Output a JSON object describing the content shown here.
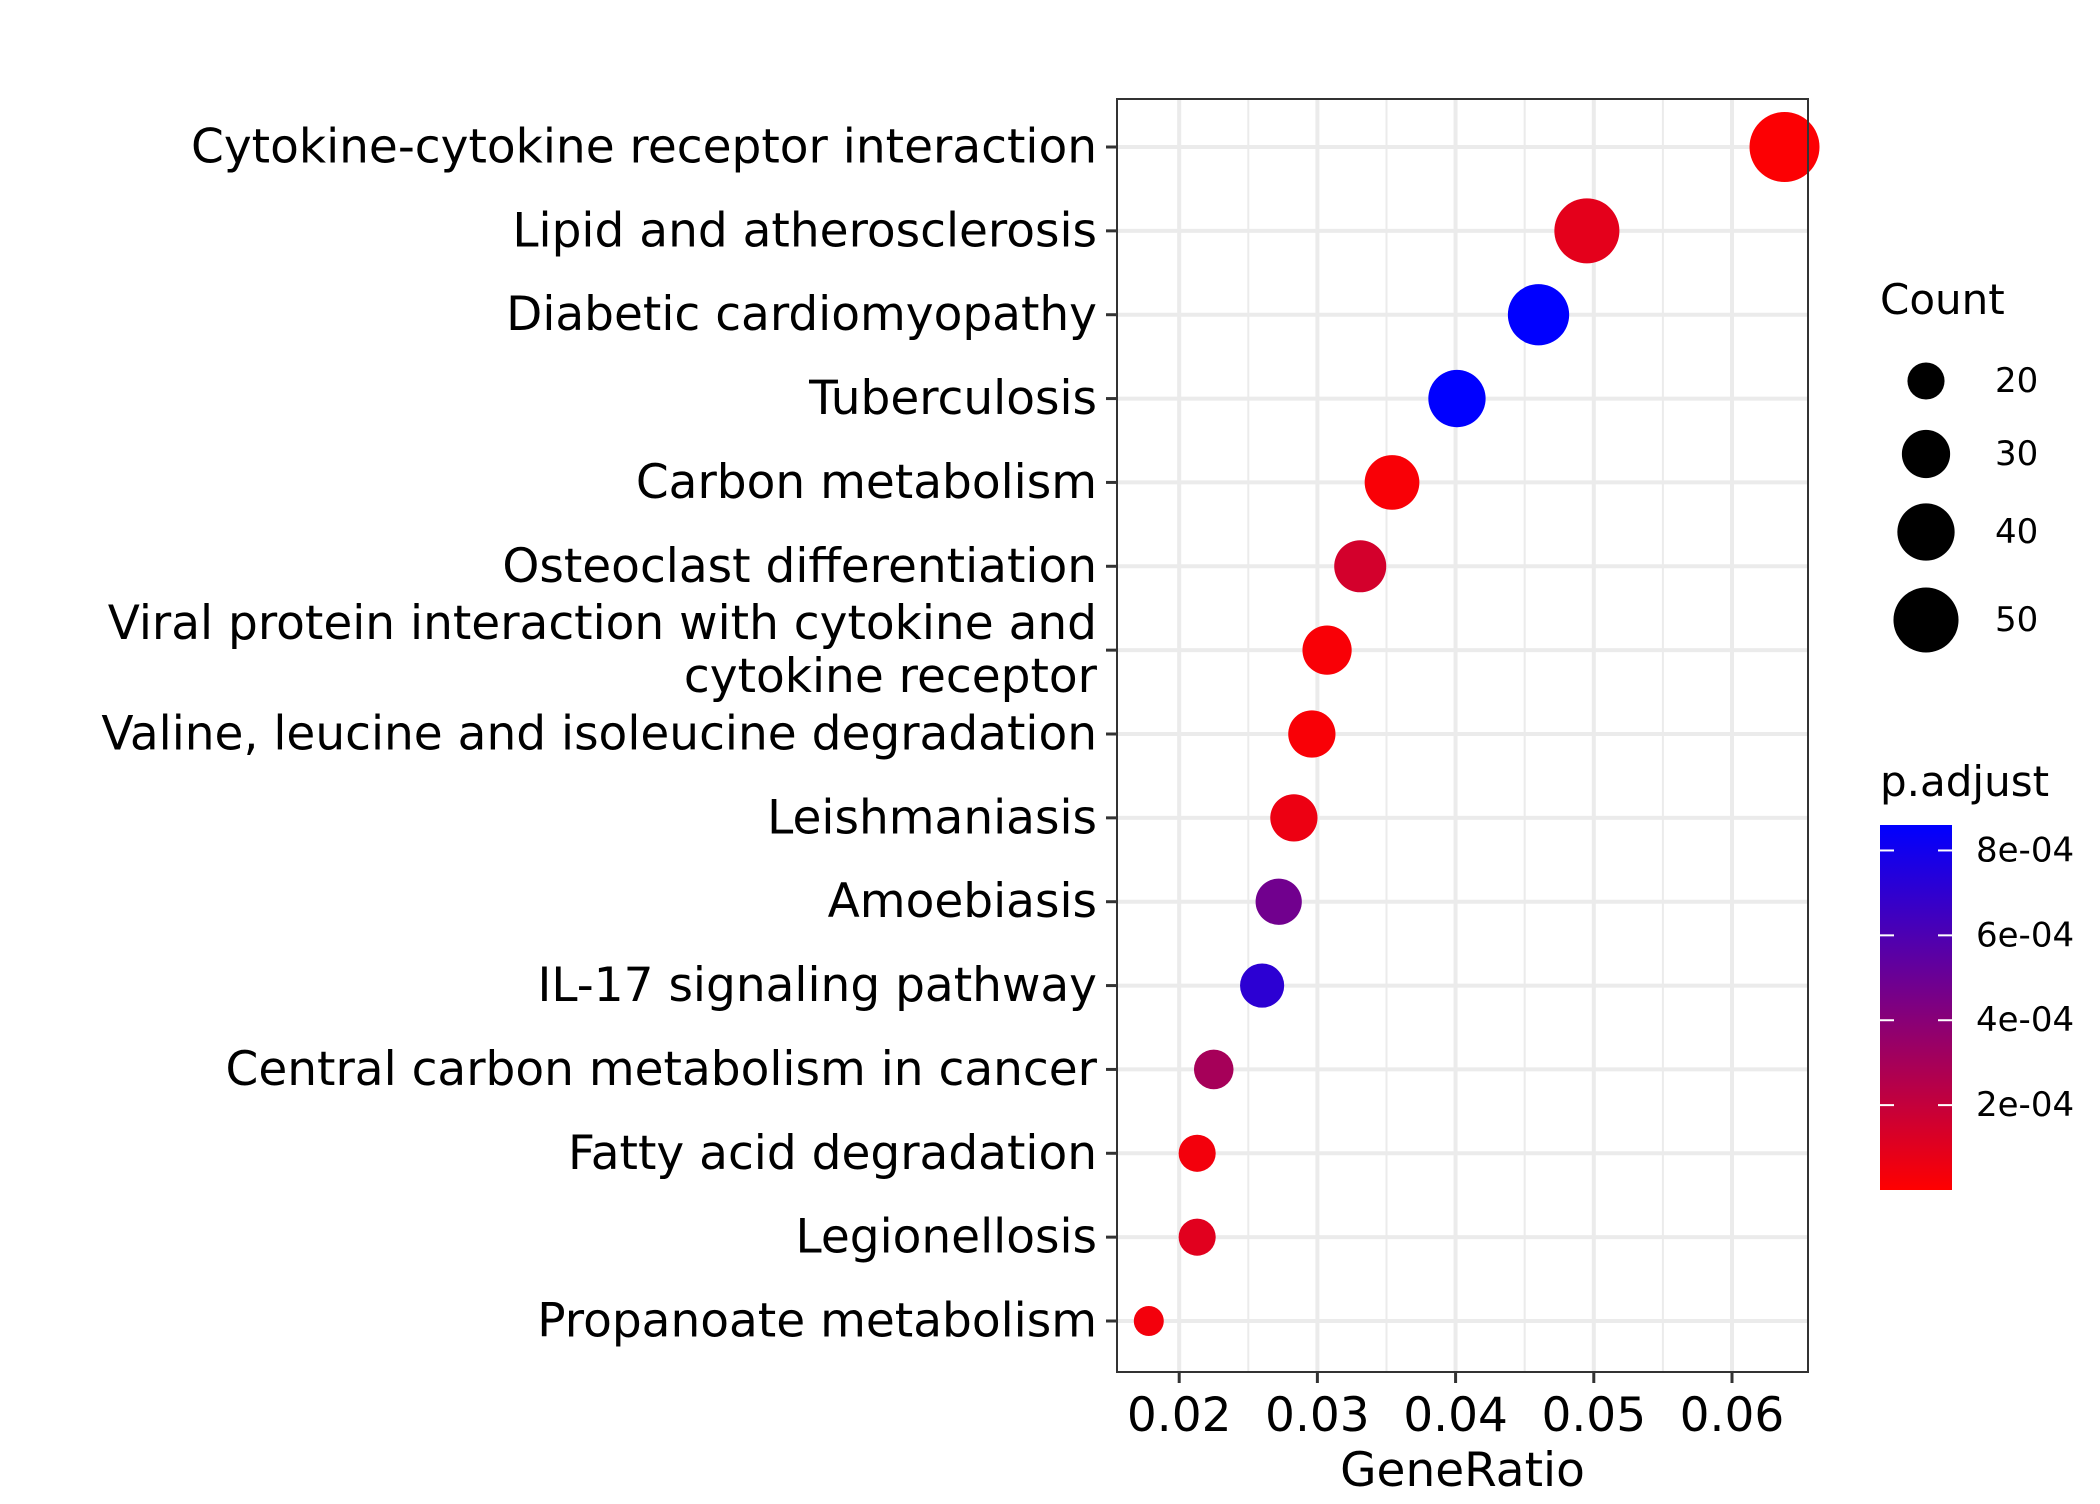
{
  "chart_data": {
    "type": "scatter",
    "xlabel": "GeneRatio",
    "ylabel": "",
    "xlim": [
      0.0155,
      0.0655
    ],
    "x_ticks": [
      {
        "value": 0.02,
        "label": "0.02"
      },
      {
        "value": 0.03,
        "label": "0.03"
      },
      {
        "value": 0.04,
        "label": "0.04"
      },
      {
        "value": 0.05,
        "label": "0.05"
      },
      {
        "value": 0.06,
        "label": "0.06"
      }
    ],
    "grid": true,
    "points": [
      {
        "term_lines": [
          "Cytokine-cytokine receptor interaction"
        ],
        "gene_ratio": 0.0638,
        "count": 57,
        "p_adjust": 1e-05
      },
      {
        "term_lines": [
          "Lipid and atherosclerosis"
        ],
        "gene_ratio": 0.0495,
        "count": 50,
        "p_adjust": 9e-05
      },
      {
        "term_lines": [
          "Diabetic cardiomyopathy"
        ],
        "gene_ratio": 0.046,
        "count": 45,
        "p_adjust": 0.00086
      },
      {
        "term_lines": [
          "Tuberculosis"
        ],
        "gene_ratio": 0.0401,
        "count": 40,
        "p_adjust": 0.00086
      },
      {
        "term_lines": [
          "Carbon metabolism"
        ],
        "gene_ratio": 0.0354,
        "count": 37,
        "p_adjust": 2e-05
      },
      {
        "term_lines": [
          "Osteoclast differentiation"
        ],
        "gene_ratio": 0.0331,
        "count": 34,
        "p_adjust": 0.00015
      },
      {
        "term_lines": [
          "Viral protein interaction with cytokine and",
          "cytokine receptor"
        ],
        "gene_ratio": 0.0307,
        "count": 31,
        "p_adjust": 2e-05
      },
      {
        "term_lines": [
          "Valine, leucine and isoleucine degradation"
        ],
        "gene_ratio": 0.0296,
        "count": 29,
        "p_adjust": 2e-05
      },
      {
        "term_lines": [
          "Leishmaniasis"
        ],
        "gene_ratio": 0.0283,
        "count": 29,
        "p_adjust": 6e-05
      },
      {
        "term_lines": [
          "Amoebiasis"
        ],
        "gene_ratio": 0.0272,
        "count": 28,
        "p_adjust": 0.00048
      },
      {
        "term_lines": [
          "IL-17 signaling pathway"
        ],
        "gene_ratio": 0.026,
        "count": 26,
        "p_adjust": 0.00071
      },
      {
        "term_lines": [
          "Central carbon metabolism in cancer"
        ],
        "gene_ratio": 0.0225,
        "count": 22,
        "p_adjust": 0.0003
      },
      {
        "term_lines": [
          "Fatty acid degradation"
        ],
        "gene_ratio": 0.0213,
        "count": 20,
        "p_adjust": 4e-05
      },
      {
        "term_lines": [
          "Legionellosis"
        ],
        "gene_ratio": 0.0213,
        "count": 20,
        "p_adjust": 0.0001
      },
      {
        "term_lines": [
          "Propanoate metabolism"
        ],
        "gene_ratio": 0.0178,
        "count": 15,
        "p_adjust": 4e-05
      }
    ],
    "legends": {
      "size": {
        "title": "Count",
        "entries": [
          {
            "value": 20,
            "label": "20"
          },
          {
            "value": 30,
            "label": "30"
          },
          {
            "value": 40,
            "label": "40"
          },
          {
            "value": 50,
            "label": "50"
          }
        ]
      },
      "color": {
        "title": "p.adjust",
        "range": [
          0.0,
          0.00086
        ],
        "low_color": "#ff0000",
        "high_color": "#0000ff",
        "ticks": [
          {
            "value": 0.0002,
            "label": "2e-04"
          },
          {
            "value": 0.0004,
            "label": "4e-04"
          },
          {
            "value": 0.0006,
            "label": "6e-04"
          },
          {
            "value": 0.0008,
            "label": "8e-04"
          }
        ]
      }
    },
    "size_range": {
      "count_min": 15,
      "count_max": 57
    }
  }
}
